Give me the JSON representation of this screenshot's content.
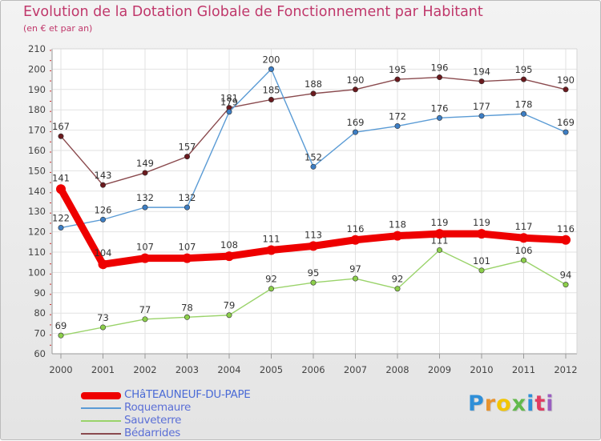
{
  "header": {
    "title": "Evolution de la Dotation Globale de Fonctionnement par Habitant",
    "subtitle": "(en € et par an)"
  },
  "logo": {
    "text": "Proxiti",
    "colors": [
      "#2f8fd8",
      "#e8932e",
      "#f2c500",
      "#62b94b",
      "#2f8fd8",
      "#e03c62",
      "#9a5fc0"
    ]
  },
  "chart_data": {
    "type": "line",
    "title": "Evolution de la Dotation Globale de Fonctionnement par Habitant",
    "subtitle": "(en € et par an)",
    "xlabel": "",
    "ylabel": "",
    "x": [
      "2000",
      "2001",
      "2002",
      "2003",
      "2004",
      "2005",
      "2006",
      "2007",
      "2008",
      "2009",
      "2010",
      "2011",
      "2012"
    ],
    "ylim": [
      60,
      210
    ],
    "yticks": [
      60,
      70,
      80,
      90,
      100,
      110,
      120,
      130,
      140,
      150,
      160,
      170,
      180,
      190,
      200,
      210
    ],
    "grid": true,
    "legend_position": "bottom-left",
    "series": [
      {
        "name": "Bédarrides",
        "color": "#6b1a1e",
        "line_color": "#8a4a4e",
        "marker_color": "#6b1a1e",
        "values": [
          167,
          143,
          149,
          157,
          181,
          185,
          188,
          190,
          195,
          196,
          194,
          195,
          190
        ],
        "labels": [
          "167",
          "143",
          "149",
          "157",
          "181",
          "185",
          "188",
          "190",
          "195",
          "196",
          "194",
          "195",
          "190"
        ]
      },
      {
        "name": "Roquemaure",
        "color": "#4a90d0",
        "line_color": "#5a9bd5",
        "marker_color": "#3d7ec4",
        "values": [
          122,
          126,
          132,
          132,
          179,
          200,
          152,
          169,
          172,
          176,
          177,
          178,
          169
        ],
        "labels": [
          "122",
          "126",
          "132",
          "132",
          "179",
          "200",
          "152",
          "169",
          "172",
          "176",
          "177",
          "178",
          "169"
        ]
      },
      {
        "name": "Sauveterre",
        "color": "#8fd35a",
        "line_color": "#9ad36a",
        "marker_color": "#8ccf4a",
        "values": [
          69,
          73,
          77,
          78,
          79,
          92,
          95,
          97,
          92,
          111,
          101,
          106,
          94
        ],
        "labels": [
          "69",
          "73",
          "77",
          "78",
          "79",
          "92",
          "95",
          "97",
          "92",
          "111",
          "101",
          "106",
          "94"
        ]
      },
      {
        "name": "CHâTEAUNEUF-DU-PAPE",
        "color": "#ee0000",
        "line_color": "#ee0000",
        "marker_color": "#ee0000",
        "values": [
          141,
          104,
          107,
          107,
          108,
          111,
          113,
          116,
          118,
          119,
          119,
          117,
          116
        ],
        "labels": [
          "141",
          "104",
          "107",
          "107",
          "108",
          "111",
          "113",
          "116",
          "118",
          "119",
          "119",
          "117",
          "116"
        ]
      }
    ],
    "legend_order": [
      "CHâTEAUNEUF-DU-PAPE",
      "Roquemaure",
      "Sauveterre",
      "Bédarrides"
    ]
  }
}
